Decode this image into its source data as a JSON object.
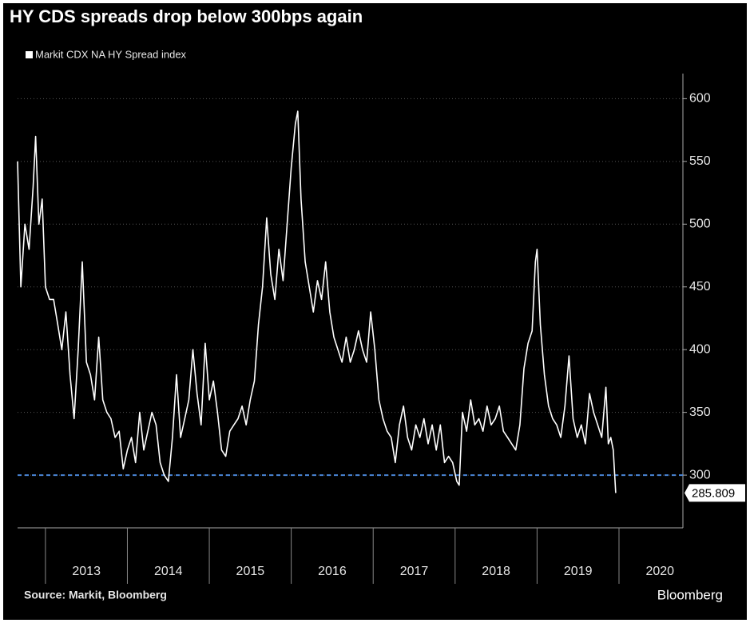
{
  "chart_data": {
    "type": "line",
    "title": "HY CDS spreads drop below 300bps again",
    "source": "Source: Markit, Bloomberg",
    "brand": "Bloomberg",
    "x": [
      2012.66,
      2012.7,
      2012.75,
      2012.8,
      2012.85,
      2012.88,
      2012.92,
      2012.96,
      2013.0,
      2013.05,
      2013.1,
      2013.15,
      2013.2,
      2013.25,
      2013.3,
      2013.35,
      2013.4,
      2013.45,
      2013.5,
      2013.55,
      2013.6,
      2013.65,
      2013.7,
      2013.75,
      2013.8,
      2013.85,
      2013.9,
      2013.95,
      2014.0,
      2014.05,
      2014.1,
      2014.15,
      2014.2,
      2014.25,
      2014.3,
      2014.35,
      2014.4,
      2014.45,
      2014.5,
      2014.55,
      2014.6,
      2014.65,
      2014.7,
      2014.75,
      2014.8,
      2014.85,
      2014.9,
      2014.95,
      2015.0,
      2015.05,
      2015.1,
      2015.15,
      2015.2,
      2015.25,
      2015.3,
      2015.35,
      2015.4,
      2015.45,
      2015.5,
      2015.55,
      2015.6,
      2015.65,
      2015.7,
      2015.75,
      2015.8,
      2015.85,
      2015.9,
      2015.95,
      2016.0,
      2016.05,
      2016.08,
      2016.12,
      2016.17,
      2016.22,
      2016.27,
      2016.32,
      2016.37,
      2016.42,
      2016.47,
      2016.52,
      2016.57,
      2016.62,
      2016.67,
      2016.72,
      2016.77,
      2016.82,
      2016.87,
      2016.92,
      2016.97,
      2017.02,
      2017.07,
      2017.12,
      2017.17,
      2017.22,
      2017.27,
      2017.32,
      2017.37,
      2017.42,
      2017.47,
      2017.52,
      2017.57,
      2017.62,
      2017.67,
      2017.72,
      2017.77,
      2017.82,
      2017.87,
      2017.92,
      2017.97,
      2018.02,
      2018.05,
      2018.09,
      2018.14,
      2018.19,
      2018.24,
      2018.29,
      2018.34,
      2018.39,
      2018.44,
      2018.49,
      2018.54,
      2018.59,
      2018.64,
      2018.69,
      2018.74,
      2018.79,
      2018.84,
      2018.89,
      2018.94,
      2018.98,
      2019.0,
      2019.04,
      2019.09,
      2019.14,
      2019.19,
      2019.24,
      2019.29,
      2019.34,
      2019.39,
      2019.44,
      2019.49,
      2019.54,
      2019.59,
      2019.64,
      2019.69,
      2019.74,
      2019.79,
      2019.84,
      2019.87,
      2019.9,
      2019.93,
      2019.96
    ],
    "series": [
      {
        "name": "Markit CDX NA HY Spread index",
        "color": "#ffffff",
        "values": [
          550,
          450,
          500,
          480,
          530,
          570,
          500,
          520,
          450,
          440,
          440,
          420,
          400,
          430,
          380,
          345,
          400,
          470,
          390,
          380,
          360,
          410,
          360,
          350,
          345,
          330,
          335,
          305,
          320,
          330,
          310,
          350,
          320,
          335,
          350,
          340,
          310,
          300,
          295,
          330,
          380,
          330,
          345,
          360,
          400,
          365,
          340,
          405,
          360,
          375,
          350,
          320,
          315,
          335,
          340,
          345,
          355,
          340,
          360,
          375,
          420,
          450,
          505,
          460,
          440,
          480,
          455,
          500,
          545,
          580,
          590,
          520,
          470,
          450,
          430,
          455,
          440,
          470,
          430,
          410,
          400,
          390,
          410,
          390,
          400,
          415,
          400,
          390,
          430,
          400,
          360,
          345,
          335,
          330,
          310,
          340,
          355,
          330,
          320,
          340,
          330,
          345,
          325,
          340,
          320,
          340,
          310,
          315,
          310,
          295,
          292,
          350,
          335,
          360,
          340,
          345,
          335,
          355,
          340,
          345,
          355,
          335,
          330,
          325,
          320,
          340,
          385,
          405,
          415,
          470,
          480,
          420,
          380,
          355,
          345,
          340,
          330,
          355,
          395,
          345,
          330,
          340,
          325,
          365,
          350,
          340,
          330,
          370,
          325,
          330,
          320,
          285.809
        ]
      }
    ],
    "xlim": [
      2012.66,
      2020.78
    ],
    "xticks": [
      {
        "value": 2013,
        "label": "2013"
      },
      {
        "value": 2014,
        "label": "2014"
      },
      {
        "value": 2015,
        "label": "2015"
      },
      {
        "value": 2016,
        "label": "2016"
      },
      {
        "value": 2017,
        "label": "2017"
      },
      {
        "value": 2018,
        "label": "2018"
      },
      {
        "value": 2019,
        "label": "2019"
      },
      {
        "value": 2020,
        "label": "2020"
      }
    ],
    "ylim": [
      258,
      620
    ],
    "yticks": [
      300,
      350,
      400,
      450,
      500,
      550,
      600
    ],
    "reference_line": {
      "value": 300,
      "color": "#4a86d8"
    },
    "grid": true
  }
}
